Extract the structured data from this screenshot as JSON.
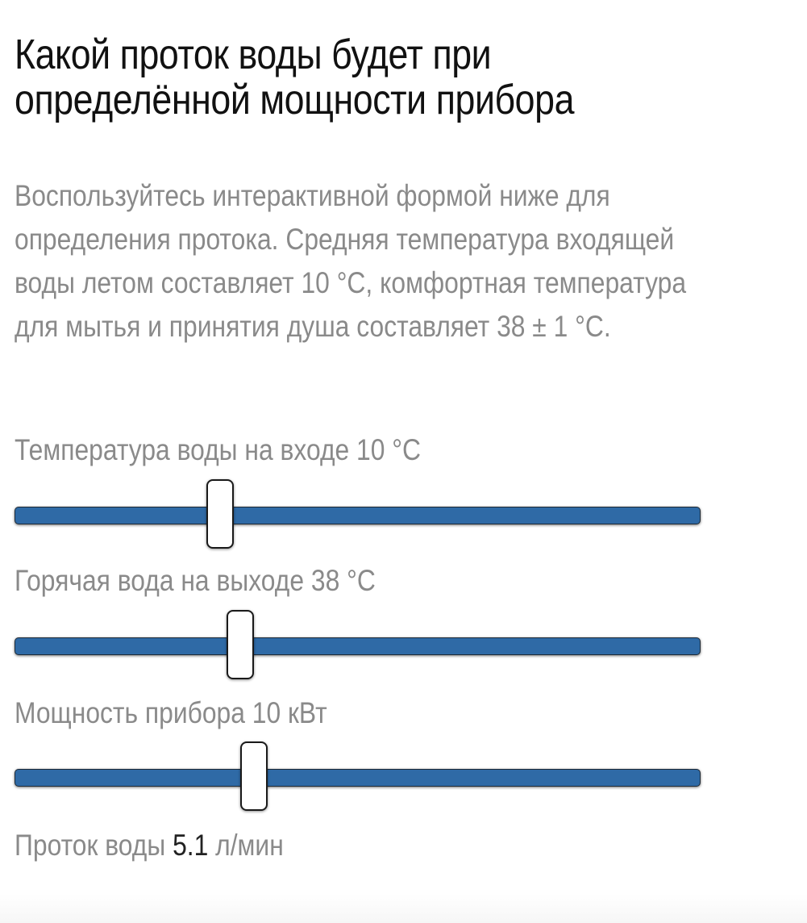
{
  "heading": "Какой проток воды будет при определённой мощности прибора",
  "intro": "Воспользуйтесь интерактивной формой ниже для определения протока. Средняя температура входящей воды летом составляет 10 °C, комфортная температура для мытья и принятия душа составляет 38 ± 1 °C.",
  "sliders": [
    {
      "label": "Температура воды на входе",
      "value_text": "10 °C",
      "value": 10
    },
    {
      "label": "Горячая вода на выходе",
      "value_text": "38 °C",
      "value": 38
    },
    {
      "label": "Мощность прибора",
      "value_text": "10 кВт",
      "value": 10
    }
  ],
  "slider_fill_fraction": [
    0.3,
    0.33,
    0.35
  ],
  "result": {
    "label": "Проток воды",
    "value": "5.1",
    "unit": "л/мин"
  },
  "colors": {
    "track": "#2f6aa6",
    "thumb": "#ffffff",
    "heading": "#111111",
    "text_muted": "#8a8a8a"
  }
}
